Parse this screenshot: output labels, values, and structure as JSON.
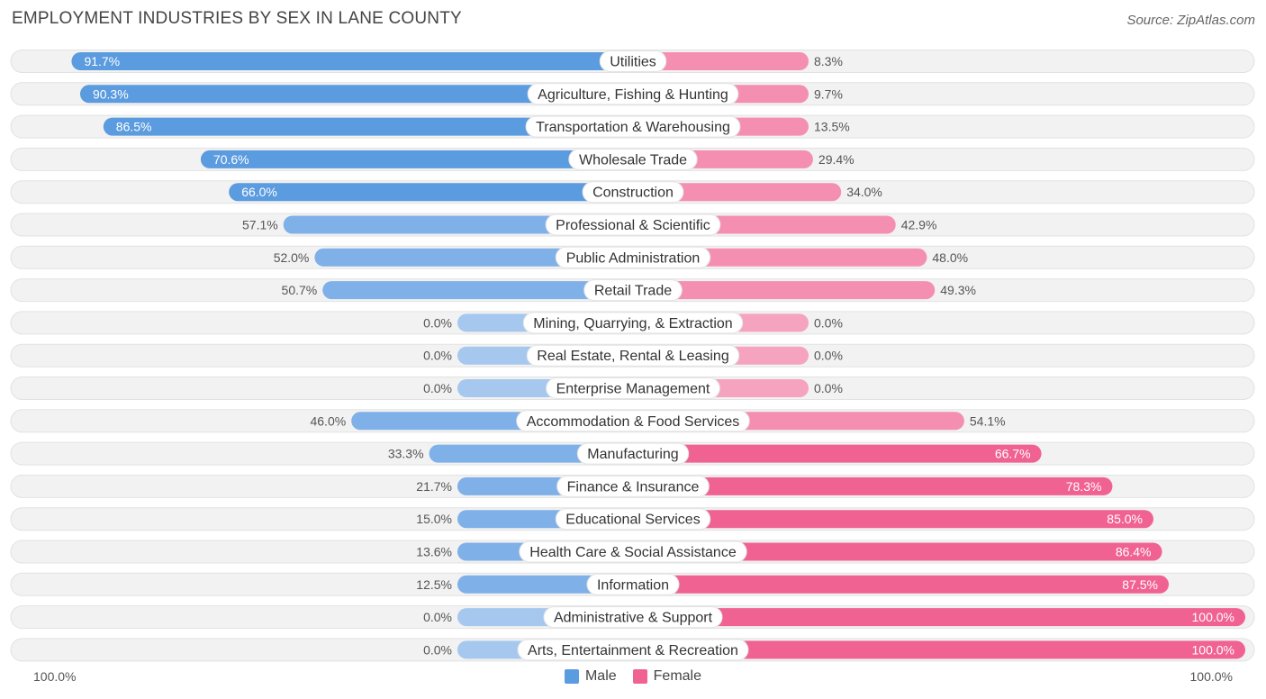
{
  "title": "EMPLOYMENT INDUSTRIES BY SEX IN LANE COUNTY",
  "source": "Source: ZipAtlas.com",
  "axis": {
    "left_label": "100.0%",
    "right_label": "100.0%"
  },
  "legend": {
    "male_label": "Male",
    "female_label": "Female"
  },
  "colors": {
    "male_strong": "#5b9bdf",
    "male_light": "#a6c8ee",
    "female_strong": "#f06292",
    "female_light": "#f5a3bf",
    "row_bg": "#f2f2f2"
  },
  "chart_data": {
    "type": "bar",
    "orientation": "horizontal-diverging",
    "title": "EMPLOYMENT INDUSTRIES BY SEX IN LANE COUNTY",
    "xlim": [
      -100,
      100
    ],
    "categories": [
      "Utilities",
      "Agriculture, Fishing & Hunting",
      "Transportation & Warehousing",
      "Wholesale Trade",
      "Construction",
      "Professional & Scientific",
      "Public Administration",
      "Retail Trade",
      "Mining, Quarrying, & Extraction",
      "Real Estate, Rental & Leasing",
      "Enterprise Management",
      "Accommodation & Food Services",
      "Manufacturing",
      "Finance & Insurance",
      "Educational Services",
      "Health Care & Social Assistance",
      "Information",
      "Administrative & Support",
      "Arts, Entertainment & Recreation"
    ],
    "series": [
      {
        "name": "Male",
        "values": [
          91.7,
          90.3,
          86.5,
          70.6,
          66.0,
          57.1,
          52.0,
          50.7,
          0.0,
          0.0,
          0.0,
          46.0,
          33.3,
          21.7,
          15.0,
          13.6,
          12.5,
          0.0,
          0.0
        ],
        "labels": [
          "91.7%",
          "90.3%",
          "86.5%",
          "70.6%",
          "66.0%",
          "57.1%",
          "52.0%",
          "50.7%",
          "0.0%",
          "0.0%",
          "0.0%",
          "46.0%",
          "33.3%",
          "21.7%",
          "15.0%",
          "13.6%",
          "12.5%",
          "0.0%",
          "0.0%"
        ]
      },
      {
        "name": "Female",
        "values": [
          8.3,
          9.7,
          13.5,
          29.4,
          34.0,
          42.9,
          48.0,
          49.3,
          0.0,
          0.0,
          0.0,
          54.1,
          66.7,
          78.3,
          85.0,
          86.4,
          87.5,
          100.0,
          100.0
        ],
        "labels": [
          "8.3%",
          "9.7%",
          "13.5%",
          "29.4%",
          "34.0%",
          "42.9%",
          "48.0%",
          "49.3%",
          "0.0%",
          "0.0%",
          "0.0%",
          "54.1%",
          "66.7%",
          "78.3%",
          "85.0%",
          "86.4%",
          "87.5%",
          "100.0%",
          "100.0%"
        ]
      }
    ]
  }
}
